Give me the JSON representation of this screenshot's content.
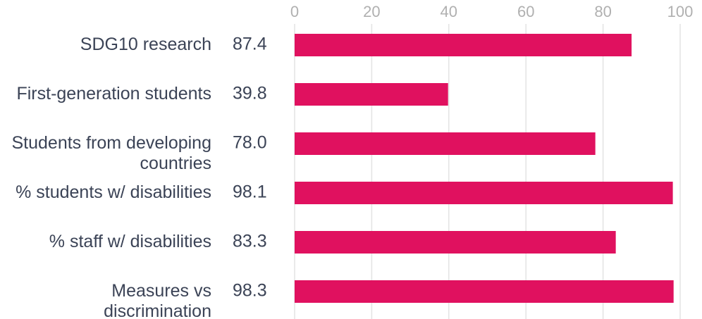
{
  "chart_data": {
    "type": "bar",
    "orientation": "horizontal",
    "categories": [
      "SDG10 research",
      "First-generation students",
      "Students from developing countries",
      "% students w/ disabilities",
      "% staff w/ disabilities",
      "Measures vs discrimination"
    ],
    "values": [
      87.4,
      39.8,
      78.0,
      98.1,
      83.3,
      98.3
    ],
    "value_labels": [
      "87.4",
      "39.8",
      "78.0",
      "98.1",
      "83.3",
      "98.3"
    ],
    "color": "#e0115f",
    "xlim": [
      0,
      100
    ],
    "xticks": [
      0,
      20,
      40,
      60,
      80,
      100
    ],
    "grid": true
  }
}
